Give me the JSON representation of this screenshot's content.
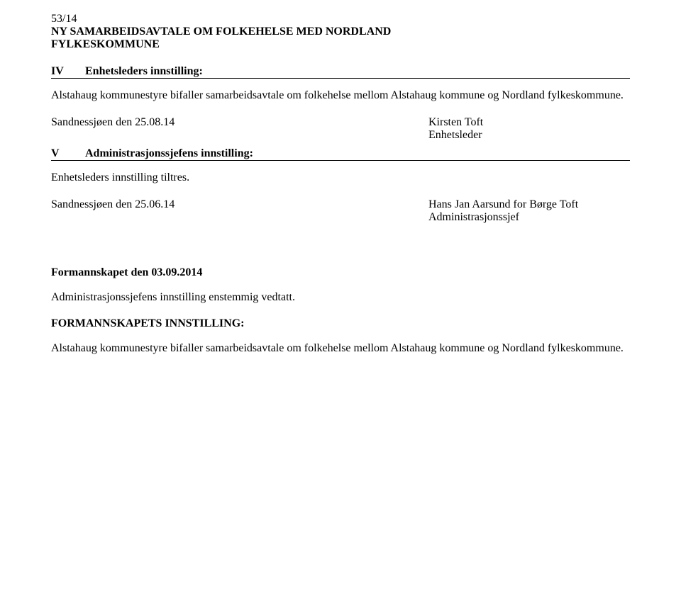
{
  "header": {
    "doc_number": "53/14",
    "title_line1": "NY SAMARBEIDSAVTALE OM FOLKEHELSE MED NORDLAND",
    "title_line2": "FYLKESKOMMUNE"
  },
  "section4": {
    "roman": "IV",
    "label": "Enhetsleders innstilling:",
    "body": "Alstahaug kommunestyre bifaller samarbeidsavtale om folkehelse mellom Alstahaug kommune og Nordland fylkeskommune.",
    "sig_date": "Sandnessjøen den 25.08.14",
    "sig_name": "Kirsten Toft",
    "sig_role": "Enhetsleder"
  },
  "section5": {
    "roman": "V",
    "label": "Administrasjonssjefens innstilling:",
    "body": "Enhetsleders innstilling tiltres.",
    "sig_date": "Sandnessjøen den 25.06.14",
    "sig_name": "Hans Jan Aarsund for Børge Toft",
    "sig_role": "Administrasjonssjef"
  },
  "formannskapet": {
    "heading": "Formannskapet den 03.09.2014",
    "line": "Administrasjonssjefens innstilling enstemmig vedtatt.",
    "inst_heading": "FORMANNSKAPETS INNSTILLING:",
    "inst_body": "Alstahaug kommunestyre bifaller samarbeidsavtale om folkehelse mellom Alstahaug kommune og Nordland fylkeskommune."
  }
}
